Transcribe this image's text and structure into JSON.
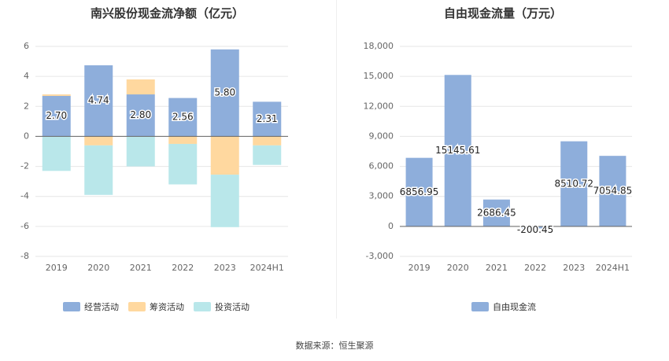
{
  "source_note": "数据来源：恒生聚源",
  "chart_data": [
    {
      "type": "bar",
      "stacked": true,
      "title": "南兴股份现金流净额（亿元）",
      "categories": [
        "2019",
        "2020",
        "2021",
        "2022",
        "2023",
        "2024H1"
      ],
      "ylim": [
        -8,
        6
      ],
      "yticks": [
        6,
        4,
        2,
        0,
        -2,
        -4,
        -6,
        -8
      ],
      "grid": true,
      "legend_position": "bottom",
      "series": [
        {
          "name": "经营活动",
          "color": "#8eaedb",
          "values": [
            2.7,
            4.74,
            2.8,
            2.56,
            5.8,
            2.31
          ],
          "labels": [
            "2.70",
            "4.74",
            "2.80",
            "2.56",
            "5.80",
            "2.31"
          ]
        },
        {
          "name": "筹资活动",
          "color": "#ffd89f",
          "values": [
            0.1,
            -0.6,
            1.0,
            -0.5,
            -2.55,
            -0.6
          ]
        },
        {
          "name": "投资活动",
          "color": "#b9e7ea",
          "values": [
            -2.3,
            -3.3,
            -2.0,
            -2.7,
            -3.5,
            -1.3
          ]
        }
      ]
    },
    {
      "type": "bar",
      "title": "自由现金流量（万元）",
      "categories": [
        "2019",
        "2020",
        "2021",
        "2022",
        "2023",
        "2024H1"
      ],
      "ylim": [
        -3000,
        18000
      ],
      "yticks": [
        "18,000",
        "15,000",
        "12,000",
        "9,000",
        "6,000",
        "3,000",
        "0",
        "-3,000"
      ],
      "grid": true,
      "legend_position": "bottom",
      "series": [
        {
          "name": "自由现金流",
          "color": "#8eaedb",
          "values": [
            6856.95,
            15145.61,
            2686.45,
            -200.45,
            8510.72,
            7054.85
          ],
          "labels": [
            "6856.95",
            "15145.61",
            "2686.45",
            "-200.45",
            "8510.72",
            "7054.85"
          ]
        }
      ]
    }
  ]
}
